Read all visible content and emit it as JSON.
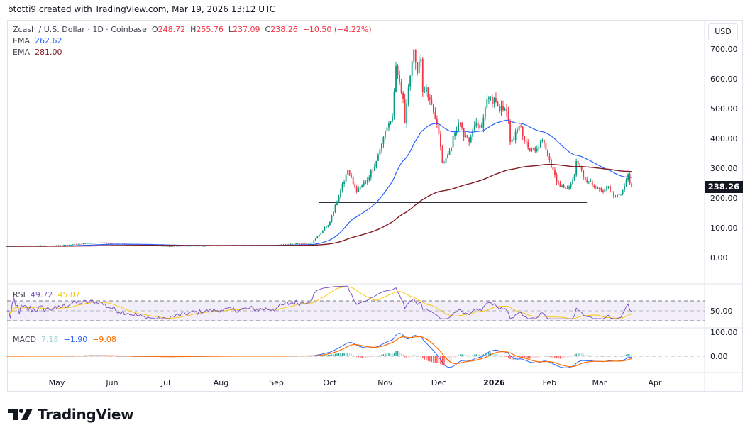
{
  "credit": "btotti9 created with TradingView.com, Mar 19, 2026 13:12 UTC",
  "legend": {
    "symbol": "Zcash / U.S. Dollar · 1D · Coinbase",
    "o_label": "O",
    "o": "248.72",
    "h_label": "H",
    "h": "255.76",
    "l_label": "L",
    "l": "237.09",
    "c_label": "C",
    "c": "238.26",
    "change": "−10.50 (−4.22%)",
    "ema1_label": "EMA",
    "ema1": "262.62",
    "ema2_label": "EMA",
    "ema2": "281.00"
  },
  "rsi_legend": {
    "label": "RSI",
    "value": "49.72",
    "ma": "45.07"
  },
  "macd_legend": {
    "label": "MACD",
    "hist": "7.18",
    "macd": "−1.90",
    "signal": "−9.08"
  },
  "currency": "USD",
  "last_price": "238.26",
  "brand": "TradingView",
  "colors": {
    "up": "#089981",
    "down": "#f23645",
    "ema_fast": "#2962ff",
    "ema_slow": "#801922",
    "rsi": "#7e57c2",
    "rsi_ma": "#f9c80e",
    "macd": "#2962ff",
    "signal": "#ff6d00"
  },
  "chart_data": {
    "type": "candlestick",
    "symbol": "ZEC/USD",
    "interval": "1D",
    "price_axis": {
      "ticks": [
        "700.00",
        "600.00",
        "500.00",
        "400.00",
        "300.00",
        "200.00",
        "100.00",
        "0.00"
      ],
      "range": [
        -50,
        790
      ]
    },
    "rsi_axis": {
      "ticks": [
        "50.00"
      ],
      "bands": [
        30,
        70
      ]
    },
    "macd_axis": {
      "ticks": [
        "100.00",
        "0.00"
      ]
    },
    "time_axis": {
      "ticks": [
        {
          "label": "May",
          "date": "2025-05-01"
        },
        {
          "label": "Jun",
          "date": "2025-06-01"
        },
        {
          "label": "Jul",
          "date": "2025-07-01"
        },
        {
          "label": "Aug",
          "date": "2025-08-01"
        },
        {
          "label": "Sep",
          "date": "2025-09-01"
        },
        {
          "label": "Oct",
          "date": "2025-10-01"
        },
        {
          "label": "Nov",
          "date": "2025-11-01"
        },
        {
          "label": "Dec",
          "date": "2025-12-01"
        },
        {
          "label": "2026",
          "date": "2026-01-01"
        },
        {
          "label": "Feb",
          "date": "2026-02-01"
        },
        {
          "label": "Mar",
          "date": "2026-03-01"
        },
        {
          "label": "Apr",
          "date": "2026-04-01"
        }
      ]
    },
    "close_keypoints": [
      [
        "2025-04-03",
        38
      ],
      [
        "2025-05-01",
        40
      ],
      [
        "2025-05-25",
        50
      ],
      [
        "2025-06-10",
        45
      ],
      [
        "2025-07-01",
        38
      ],
      [
        "2025-08-01",
        40
      ],
      [
        "2025-09-01",
        42
      ],
      [
        "2025-09-21",
        50
      ],
      [
        "2025-10-01",
        119
      ],
      [
        "2025-10-11",
        293
      ],
      [
        "2025-10-16",
        221
      ],
      [
        "2025-10-22",
        262
      ],
      [
        "2025-10-27",
        324
      ],
      [
        "2025-10-31",
        405
      ],
      [
        "2025-11-05",
        476
      ],
      [
        "2025-11-07",
        643
      ],
      [
        "2025-11-11",
        531
      ],
      [
        "2025-11-12",
        452
      ],
      [
        "2025-11-15",
        610
      ],
      [
        "2025-11-17",
        698
      ],
      [
        "2025-11-19",
        619
      ],
      [
        "2025-11-21",
        667
      ],
      [
        "2025-11-22",
        555
      ],
      [
        "2025-11-24",
        571
      ],
      [
        "2025-11-27",
        514
      ],
      [
        "2025-11-29",
        467
      ],
      [
        "2025-12-02",
        371
      ],
      [
        "2025-12-03",
        317
      ],
      [
        "2025-12-07",
        357
      ],
      [
        "2025-12-10",
        419
      ],
      [
        "2025-12-13",
        452
      ],
      [
        "2025-12-15",
        405
      ],
      [
        "2025-12-18",
        388
      ],
      [
        "2025-12-21",
        443
      ],
      [
        "2025-12-25",
        436
      ],
      [
        "2025-12-28",
        531
      ],
      [
        "2025-12-30",
        538
      ],
      [
        "2026-01-03",
        507
      ],
      [
        "2026-01-07",
        500
      ],
      [
        "2026-01-09",
        460
      ],
      [
        "2026-01-10",
        388
      ],
      [
        "2026-01-12",
        395
      ],
      [
        "2026-01-15",
        443
      ],
      [
        "2026-01-19",
        388
      ],
      [
        "2026-01-21",
        357
      ],
      [
        "2026-01-25",
        364
      ],
      [
        "2026-01-28",
        395
      ],
      [
        "2026-01-31",
        340
      ],
      [
        "2026-02-03",
        293
      ],
      [
        "2026-02-05",
        252
      ],
      [
        "2026-02-07",
        238
      ],
      [
        "2026-02-12",
        238
      ],
      [
        "2026-02-15",
        276
      ],
      [
        "2026-02-16",
        324
      ],
      [
        "2026-02-19",
        293
      ],
      [
        "2026-02-21",
        262
      ],
      [
        "2026-02-27",
        238
      ],
      [
        "2026-03-03",
        221
      ],
      [
        "2026-03-06",
        240
      ],
      [
        "2026-03-09",
        202
      ],
      [
        "2026-03-13",
        214
      ],
      [
        "2026-03-16",
        262
      ],
      [
        "2026-03-17",
        280
      ],
      [
        "2026-03-18",
        248.72
      ],
      [
        "2026-03-19",
        238.26
      ]
    ],
    "support_line": {
      "price": 185,
      "from": "2025-09-25",
      "to": "2026-02-22"
    }
  }
}
